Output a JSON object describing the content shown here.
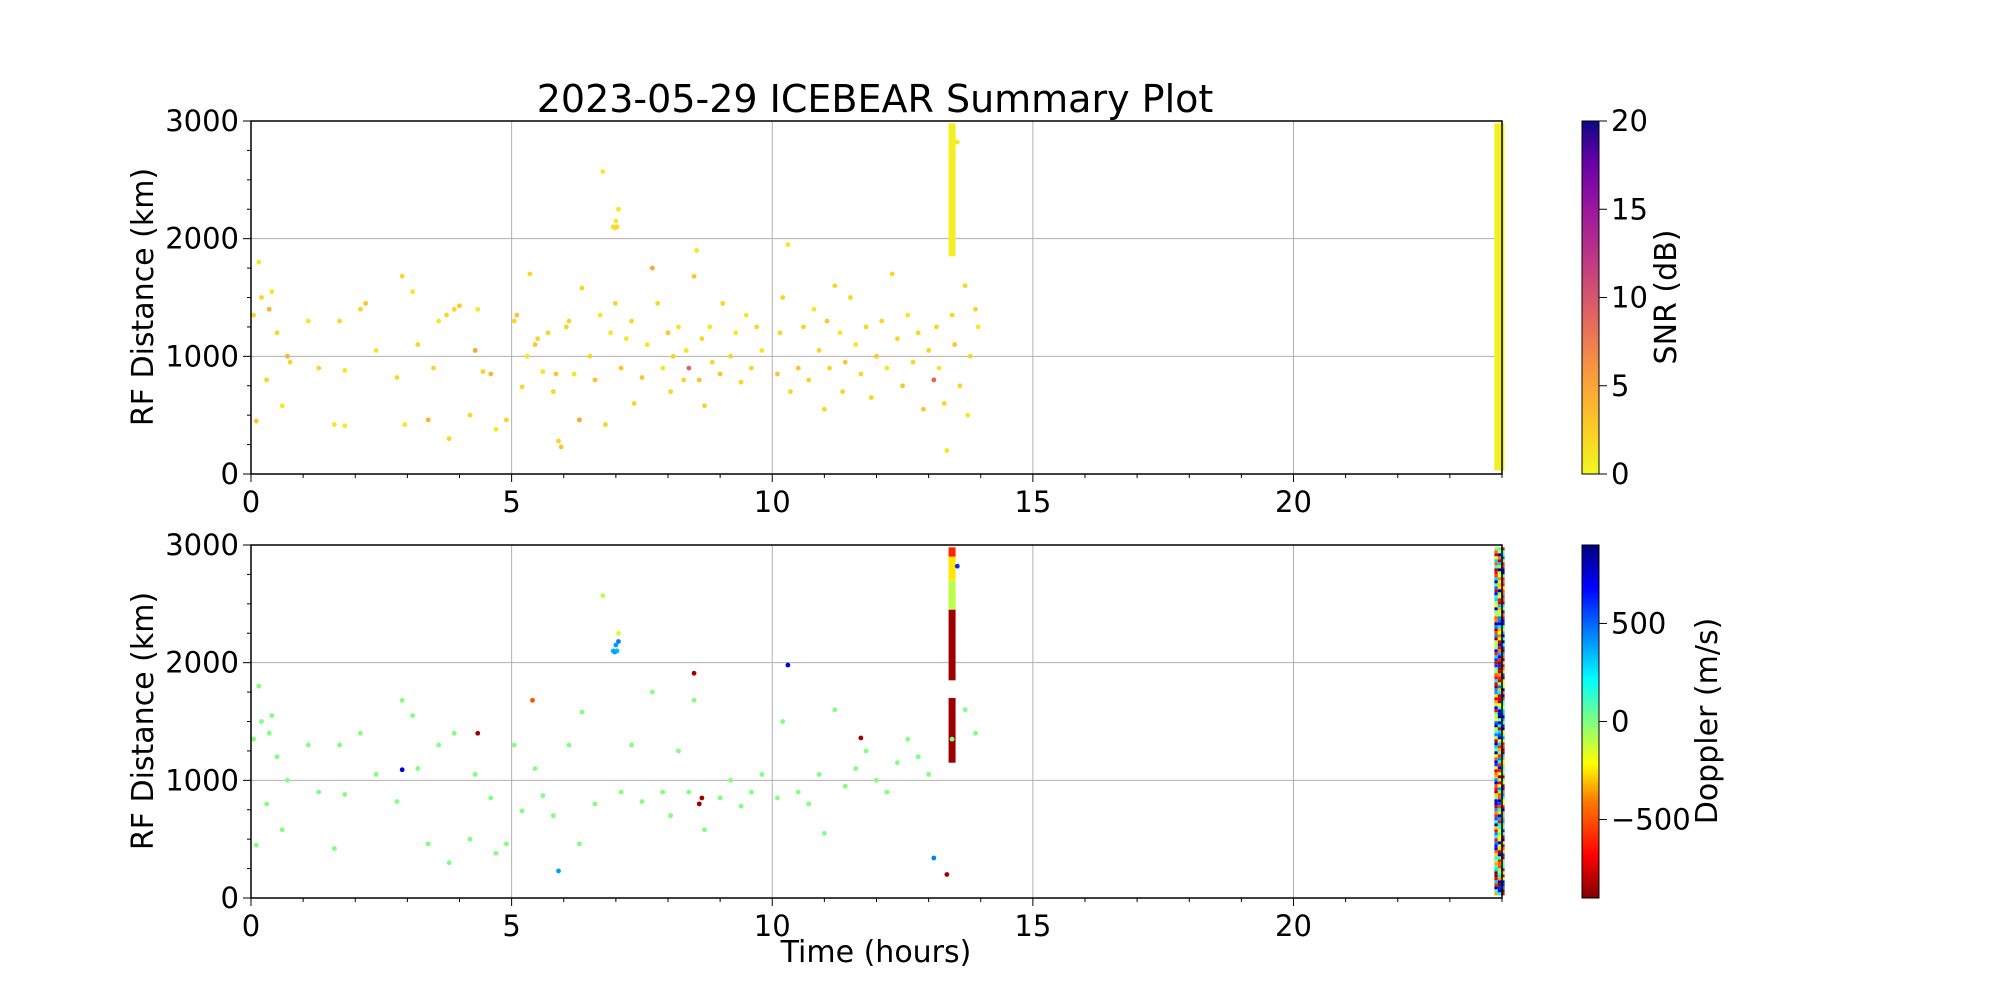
{
  "title": "2023-05-29 ICEBEAR Summary Plot",
  "chart_data": [
    {
      "type": "scatter",
      "panel": "top",
      "ylabel": "RF Distance (km)",
      "xlabel": "",
      "xlim": [
        0,
        24
      ],
      "ylim": [
        0,
        3000
      ],
      "xticks": [
        0,
        5,
        10,
        15,
        20
      ],
      "yticks": [
        0,
        1000,
        2000,
        3000
      ],
      "grid": true,
      "colorbar": {
        "label": "SNR (dB)",
        "range": [
          0,
          20
        ],
        "ticks": [
          0,
          5,
          10,
          15,
          20
        ],
        "colormap": "plasma_r"
      },
      "points": [
        [
          0.05,
          1350,
          2
        ],
        [
          0.1,
          450,
          3
        ],
        [
          0.15,
          1800,
          1
        ],
        [
          0.2,
          1500,
          2
        ],
        [
          0.3,
          800,
          2
        ],
        [
          0.35,
          1400,
          4
        ],
        [
          0.4,
          1550,
          1
        ],
        [
          0.5,
          1200,
          2
        ],
        [
          0.6,
          580,
          1
        ],
        [
          0.7,
          1000,
          4
        ],
        [
          0.75,
          950,
          2
        ],
        [
          1.1,
          1300,
          1
        ],
        [
          1.3,
          900,
          2
        ],
        [
          1.6,
          420,
          1
        ],
        [
          1.7,
          1300,
          2
        ],
        [
          1.8,
          880,
          1
        ],
        [
          1.8,
          410,
          1
        ],
        [
          2.1,
          1400,
          2
        ],
        [
          2.2,
          1450,
          3
        ],
        [
          2.4,
          1050,
          1
        ],
        [
          2.8,
          820,
          2
        ],
        [
          2.9,
          1680,
          2
        ],
        [
          2.95,
          420,
          1
        ],
        [
          3.1,
          1550,
          1
        ],
        [
          3.2,
          1100,
          2
        ],
        [
          3.4,
          460,
          4
        ],
        [
          3.5,
          900,
          2
        ],
        [
          3.6,
          1300,
          1
        ],
        [
          3.75,
          1350,
          2
        ],
        [
          3.8,
          300,
          2
        ],
        [
          3.9,
          1400,
          2
        ],
        [
          4.0,
          1430,
          3
        ],
        [
          4.2,
          500,
          2
        ],
        [
          4.35,
          1400,
          1
        ],
        [
          4.3,
          1050,
          5
        ],
        [
          4.45,
          870,
          2
        ],
        [
          4.6,
          850,
          4
        ],
        [
          4.7,
          380,
          1
        ],
        [
          4.9,
          460,
          2
        ],
        [
          5.05,
          1300,
          2
        ],
        [
          5.1,
          1350,
          3
        ],
        [
          5.2,
          740,
          2
        ],
        [
          5.3,
          1000,
          1
        ],
        [
          5.35,
          1700,
          2
        ],
        [
          5.45,
          1100,
          3
        ],
        [
          5.5,
          1150,
          2
        ],
        [
          5.6,
          870,
          1
        ],
        [
          5.7,
          1200,
          2
        ],
        [
          5.8,
          700,
          2
        ],
        [
          5.85,
          850,
          3
        ],
        [
          5.9,
          280,
          2
        ],
        [
          5.95,
          230,
          3
        ],
        [
          6.05,
          1250,
          2
        ],
        [
          6.1,
          1300,
          2
        ],
        [
          6.2,
          850,
          1
        ],
        [
          6.3,
          460,
          5
        ],
        [
          6.35,
          1580,
          2
        ],
        [
          6.5,
          1000,
          2
        ],
        [
          6.6,
          800,
          3
        ],
        [
          6.7,
          1350,
          1
        ],
        [
          6.75,
          2570,
          1
        ],
        [
          6.8,
          420,
          2
        ],
        [
          6.9,
          1200,
          1
        ],
        [
          6.95,
          2100,
          2
        ],
        [
          7.0,
          2150,
          1
        ],
        [
          7.05,
          2250,
          1
        ],
        [
          6.98,
          2090,
          1
        ],
        [
          7.02,
          2100,
          2
        ],
        [
          6.99,
          1450,
          2
        ],
        [
          7.1,
          900,
          3
        ],
        [
          7.2,
          1150,
          1
        ],
        [
          7.3,
          1300,
          2
        ],
        [
          7.35,
          600,
          2
        ],
        [
          7.5,
          820,
          3
        ],
        [
          7.6,
          1100,
          1
        ],
        [
          7.7,
          1750,
          5
        ],
        [
          7.8,
          1450,
          2
        ],
        [
          7.9,
          900,
          1
        ],
        [
          8.0,
          1200,
          3
        ],
        [
          8.05,
          700,
          2
        ],
        [
          8.1,
          1000,
          2
        ],
        [
          8.2,
          1250,
          1
        ],
        [
          8.3,
          800,
          2
        ],
        [
          8.35,
          1050,
          1
        ],
        [
          8.4,
          900,
          9
        ],
        [
          8.5,
          1680,
          3
        ],
        [
          8.55,
          1900,
          1
        ],
        [
          8.6,
          800,
          3
        ],
        [
          8.65,
          1150,
          2
        ],
        [
          8.7,
          580,
          2
        ],
        [
          8.8,
          1250,
          1
        ],
        [
          8.85,
          950,
          2
        ],
        [
          9.0,
          850,
          3
        ],
        [
          9.05,
          1450,
          2
        ],
        [
          9.2,
          1000,
          2
        ],
        [
          9.3,
          1200,
          1
        ],
        [
          9.4,
          780,
          2
        ],
        [
          9.5,
          1350,
          1
        ],
        [
          9.6,
          900,
          2
        ],
        [
          9.7,
          1250,
          2
        ],
        [
          9.8,
          1050,
          1
        ],
        [
          10.1,
          850,
          3
        ],
        [
          10.15,
          1200,
          2
        ],
        [
          10.2,
          1500,
          2
        ],
        [
          10.3,
          1950,
          1
        ],
        [
          10.35,
          700,
          2
        ],
        [
          10.5,
          900,
          3
        ],
        [
          10.6,
          1250,
          2
        ],
        [
          10.7,
          800,
          2
        ],
        [
          10.8,
          1400,
          1
        ],
        [
          10.9,
          1050,
          2
        ],
        [
          11.0,
          550,
          2
        ],
        [
          11.05,
          1300,
          3
        ],
        [
          11.1,
          900,
          2
        ],
        [
          11.2,
          1600,
          2
        ],
        [
          11.3,
          1200,
          1
        ],
        [
          11.35,
          700,
          2
        ],
        [
          11.4,
          950,
          3
        ],
        [
          11.5,
          1500,
          2
        ],
        [
          11.6,
          1100,
          1
        ],
        [
          11.7,
          850,
          2
        ],
        [
          11.8,
          1250,
          2
        ],
        [
          11.9,
          650,
          2
        ],
        [
          12.0,
          1000,
          3
        ],
        [
          12.1,
          1300,
          2
        ],
        [
          12.2,
          900,
          1
        ],
        [
          12.3,
          1700,
          2
        ],
        [
          12.4,
          1150,
          2
        ],
        [
          12.5,
          750,
          3
        ],
        [
          12.6,
          1350,
          1
        ],
        [
          12.7,
          950,
          2
        ],
        [
          12.8,
          1200,
          2
        ],
        [
          12.9,
          550,
          3
        ],
        [
          13.0,
          1050,
          2
        ],
        [
          13.1,
          800,
          9
        ],
        [
          13.15,
          1250,
          2
        ],
        [
          13.2,
          900,
          1
        ],
        [
          13.3,
          600,
          2
        ],
        [
          13.35,
          200,
          1
        ],
        [
          13.45,
          1350,
          2
        ],
        [
          13.5,
          1100,
          3
        ],
        [
          13.55,
          2820,
          1
        ],
        [
          13.6,
          750,
          2
        ],
        [
          13.7,
          1600,
          2
        ],
        [
          13.75,
          500,
          1
        ],
        [
          13.8,
          1000,
          2
        ],
        [
          13.9,
          1400,
          2
        ],
        [
          13.95,
          1250,
          1
        ]
      ],
      "band": {
        "x": 13.45,
        "y0": 1850,
        "y1": 2980
      },
      "edge_band": {
        "x": 23.95,
        "y0": 30,
        "y1": 2980
      }
    },
    {
      "type": "scatter",
      "panel": "bottom",
      "ylabel": "RF Distance (km)",
      "xlabel": "Time (hours)",
      "xlim": [
        0,
        24
      ],
      "ylim": [
        0,
        3000
      ],
      "xticks": [
        0,
        5,
        10,
        15,
        20
      ],
      "yticks": [
        0,
        1000,
        2000,
        3000
      ],
      "grid": true,
      "colorbar": {
        "label": "Doppler (m/s)",
        "range": [
          -900,
          900
        ],
        "ticks": [
          -500,
          0,
          500
        ],
        "colormap": "jet_r"
      },
      "points": [
        [
          0.05,
          1350,
          0
        ],
        [
          0.1,
          450,
          0
        ],
        [
          0.15,
          1800,
          0
        ],
        [
          0.2,
          1500,
          0
        ],
        [
          0.3,
          800,
          0
        ],
        [
          0.35,
          1400,
          0
        ],
        [
          0.4,
          1550,
          0
        ],
        [
          0.5,
          1200,
          0
        ],
        [
          0.6,
          580,
          0
        ],
        [
          0.7,
          1000,
          0
        ],
        [
          1.1,
          1300,
          0
        ],
        [
          1.3,
          900,
          0
        ],
        [
          1.6,
          420,
          0
        ],
        [
          1.7,
          1300,
          0
        ],
        [
          1.8,
          880,
          0
        ],
        [
          2.1,
          1400,
          0
        ],
        [
          2.4,
          1050,
          0
        ],
        [
          2.8,
          820,
          0
        ],
        [
          2.9,
          1680,
          0
        ],
        [
          2.9,
          1090,
          750
        ],
        [
          3.1,
          1550,
          0
        ],
        [
          3.2,
          1100,
          0
        ],
        [
          3.4,
          460,
          0
        ],
        [
          3.6,
          1300,
          0
        ],
        [
          3.8,
          300,
          0
        ],
        [
          3.9,
          1400,
          0
        ],
        [
          4.2,
          500,
          0
        ],
        [
          4.35,
          1400,
          -850
        ],
        [
          4.3,
          1050,
          0
        ],
        [
          4.6,
          850,
          0
        ],
        [
          4.7,
          380,
          0
        ],
        [
          4.9,
          460,
          0
        ],
        [
          5.05,
          1300,
          0
        ],
        [
          5.2,
          740,
          0
        ],
        [
          5.4,
          1680,
          -500
        ],
        [
          5.45,
          1100,
          0
        ],
        [
          5.6,
          870,
          0
        ],
        [
          5.8,
          700,
          0
        ],
        [
          5.9,
          230,
          400
        ],
        [
          6.1,
          1300,
          0
        ],
        [
          6.3,
          460,
          0
        ],
        [
          6.35,
          1580,
          0
        ],
        [
          6.6,
          800,
          0
        ],
        [
          6.75,
          2570,
          -100
        ],
        [
          6.95,
          2100,
          350
        ],
        [
          7.0,
          2150,
          400
        ],
        [
          7.05,
          2250,
          -150
        ],
        [
          6.98,
          2090,
          400
        ],
        [
          7.02,
          2100,
          350
        ],
        [
          7.05,
          2180,
          450
        ],
        [
          7.1,
          900,
          0
        ],
        [
          7.3,
          1300,
          0
        ],
        [
          7.5,
          820,
          0
        ],
        [
          7.7,
          1750,
          0
        ],
        [
          7.9,
          900,
          0
        ],
        [
          8.05,
          700,
          0
        ],
        [
          8.2,
          1250,
          0
        ],
        [
          8.4,
          900,
          0
        ],
        [
          8.5,
          1680,
          0
        ],
        [
          8.5,
          1910,
          -850
        ],
        [
          8.6,
          800,
          -850
        ],
        [
          8.65,
          850,
          -850
        ],
        [
          8.7,
          580,
          0
        ],
        [
          9.0,
          850,
          0
        ],
        [
          9.2,
          1000,
          0
        ],
        [
          9.4,
          780,
          0
        ],
        [
          9.6,
          900,
          0
        ],
        [
          9.8,
          1050,
          0
        ],
        [
          10.1,
          850,
          0
        ],
        [
          10.2,
          1500,
          0
        ],
        [
          10.3,
          1980,
          750
        ],
        [
          10.5,
          900,
          0
        ],
        [
          10.7,
          800,
          0
        ],
        [
          10.9,
          1050,
          0
        ],
        [
          11.0,
          550,
          0
        ],
        [
          11.2,
          1600,
          0
        ],
        [
          11.4,
          950,
          0
        ],
        [
          11.6,
          1100,
          0
        ],
        [
          11.7,
          1360,
          -850
        ],
        [
          11.8,
          1250,
          0
        ],
        [
          12.0,
          1000,
          0
        ],
        [
          12.2,
          900,
          0
        ],
        [
          12.4,
          1150,
          0
        ],
        [
          12.6,
          1350,
          0
        ],
        [
          12.8,
          1200,
          0
        ],
        [
          13.0,
          1050,
          0
        ],
        [
          13.1,
          340,
          450
        ],
        [
          13.35,
          200,
          -850
        ],
        [
          13.45,
          1350,
          0
        ],
        [
          13.55,
          2820,
          600
        ],
        [
          13.7,
          1600,
          0
        ],
        [
          13.9,
          1400,
          0
        ]
      ],
      "band_segments": [
        {
          "y0": 2900,
          "y1": 2980,
          "v": -600
        },
        {
          "y0": 2700,
          "y1": 2900,
          "v": -250
        },
        {
          "y0": 2450,
          "y1": 2700,
          "v": -100
        },
        {
          "y0": 1850,
          "y1": 2450,
          "v": -850
        },
        {
          "y0": 1150,
          "y1": 1700,
          "v": -850
        }
      ],
      "band_x": 13.45,
      "edge_band": {
        "x": 23.95,
        "y0": 30,
        "y1": 2980
      }
    }
  ]
}
